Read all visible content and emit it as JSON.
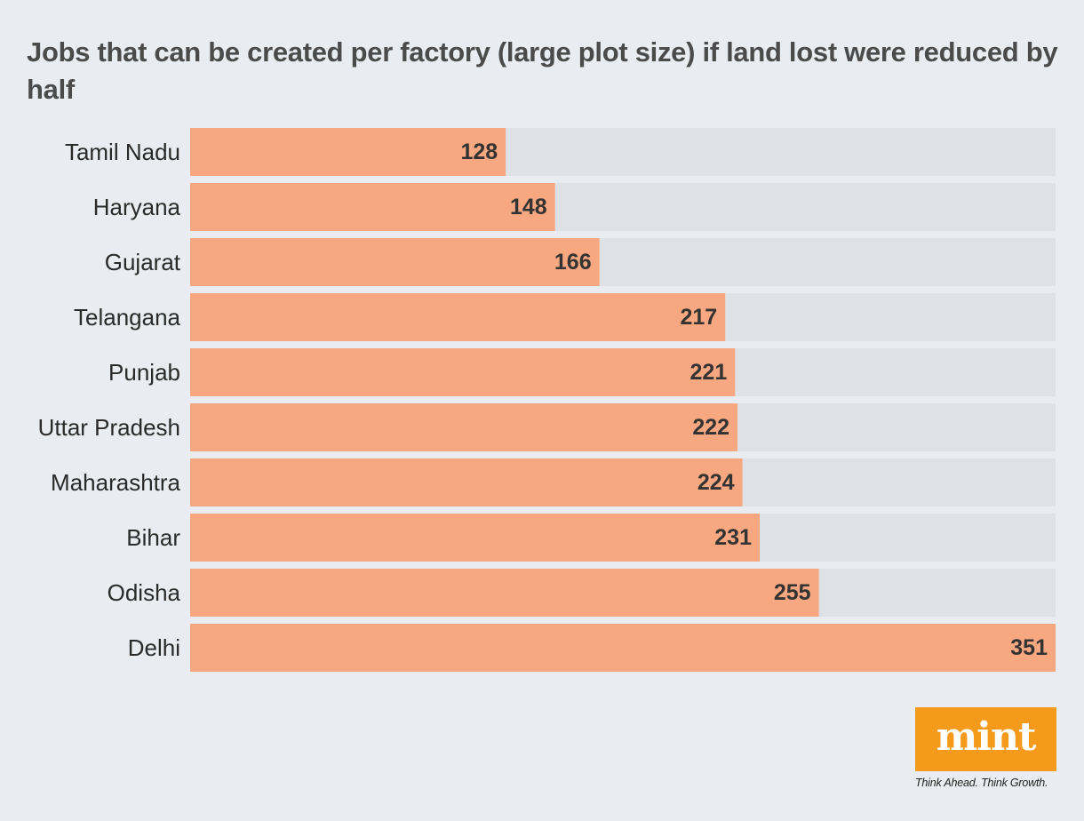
{
  "chart_data": {
    "type": "bar",
    "orientation": "horizontal",
    "title": "Jobs that can be created per factory  (large plot size) if land lost were reduced by half",
    "categories": [
      "Tamil Nadu",
      "Haryana",
      "Gujarat",
      "Telangana",
      "Punjab",
      "Uttar Pradesh",
      "Maharashtra",
      "Bihar",
      "Odisha",
      "Delhi"
    ],
    "values": [
      128,
      148,
      166,
      217,
      221,
      222,
      224,
      231,
      255,
      351
    ],
    "xlabel": "",
    "ylabel": "",
    "xlim": [
      0,
      351
    ],
    "grid": false,
    "legend": "none",
    "data_labels": true,
    "bar_color": "#f8a880",
    "track_color": "#dee1e5"
  },
  "brand": {
    "name": "mint",
    "tagline": "Think Ahead. Think Growth.",
    "color": "#f59a1b"
  }
}
